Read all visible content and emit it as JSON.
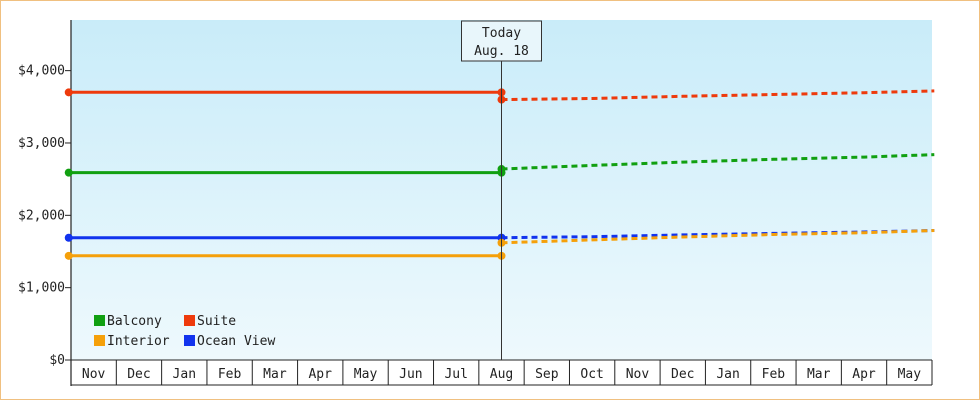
{
  "chart_data": {
    "type": "line",
    "y_axis": {
      "ticks": [
        0,
        1000,
        2000,
        3000,
        4000
      ],
      "tick_labels": [
        "$0",
        "$1,000",
        "$2,000",
        "$3,000",
        "$4,000"
      ],
      "ylim": [
        0,
        4700
      ]
    },
    "months": [
      "Nov",
      "Dec",
      "Jan",
      "Feb",
      "Mar",
      "Apr",
      "May",
      "Jun",
      "Jul",
      "Aug",
      "Sep",
      "Oct",
      "Nov",
      "Dec",
      "Jan",
      "Feb",
      "Mar",
      "Apr",
      "May"
    ],
    "today": {
      "label": "Today",
      "date": "Aug. 18",
      "month_index": 9.0
    },
    "grid": false,
    "legend_position": "bottom-left",
    "series": [
      {
        "name": "Suite",
        "color": "#ee3a0c",
        "history": [
          [
            -0.55,
            3700
          ],
          [
            9.0,
            3700
          ]
        ],
        "forecast": [
          [
            9.0,
            3600
          ],
          [
            11,
            3615
          ],
          [
            13,
            3645
          ],
          [
            15,
            3670
          ],
          [
            17,
            3695
          ],
          [
            18.55,
            3720
          ]
        ]
      },
      {
        "name": "Balcony",
        "color": "#11a011",
        "history": [
          [
            -0.55,
            2590
          ],
          [
            9.0,
            2590
          ]
        ],
        "forecast": [
          [
            9.0,
            2640
          ],
          [
            11,
            2690
          ],
          [
            13,
            2735
          ],
          [
            15,
            2775
          ],
          [
            17,
            2805
          ],
          [
            18.55,
            2840
          ]
        ]
      },
      {
        "name": "Ocean View",
        "color": "#1133ee",
        "history": [
          [
            -0.55,
            1690
          ],
          [
            9.0,
            1690
          ]
        ],
        "forecast": [
          [
            9.0,
            1690
          ],
          [
            11,
            1705
          ],
          [
            13,
            1730
          ],
          [
            15,
            1750
          ],
          [
            17,
            1770
          ],
          [
            18.55,
            1790
          ]
        ]
      },
      {
        "name": "Interior",
        "color": "#f5a00a",
        "history": [
          [
            -0.55,
            1440
          ],
          [
            9.0,
            1440
          ]
        ],
        "forecast": [
          [
            9.0,
            1620
          ],
          [
            11,
            1660
          ],
          [
            13,
            1700
          ],
          [
            15,
            1735
          ],
          [
            17,
            1760
          ],
          [
            18.55,
            1790
          ]
        ]
      }
    ],
    "legend": [
      {
        "name": "Balcony",
        "color": "#11a011"
      },
      {
        "name": "Suite",
        "color": "#ee3a0c"
      },
      {
        "name": "Interior",
        "color": "#f5a00a"
      },
      {
        "name": "Ocean View",
        "color": "#1133ee"
      }
    ]
  }
}
